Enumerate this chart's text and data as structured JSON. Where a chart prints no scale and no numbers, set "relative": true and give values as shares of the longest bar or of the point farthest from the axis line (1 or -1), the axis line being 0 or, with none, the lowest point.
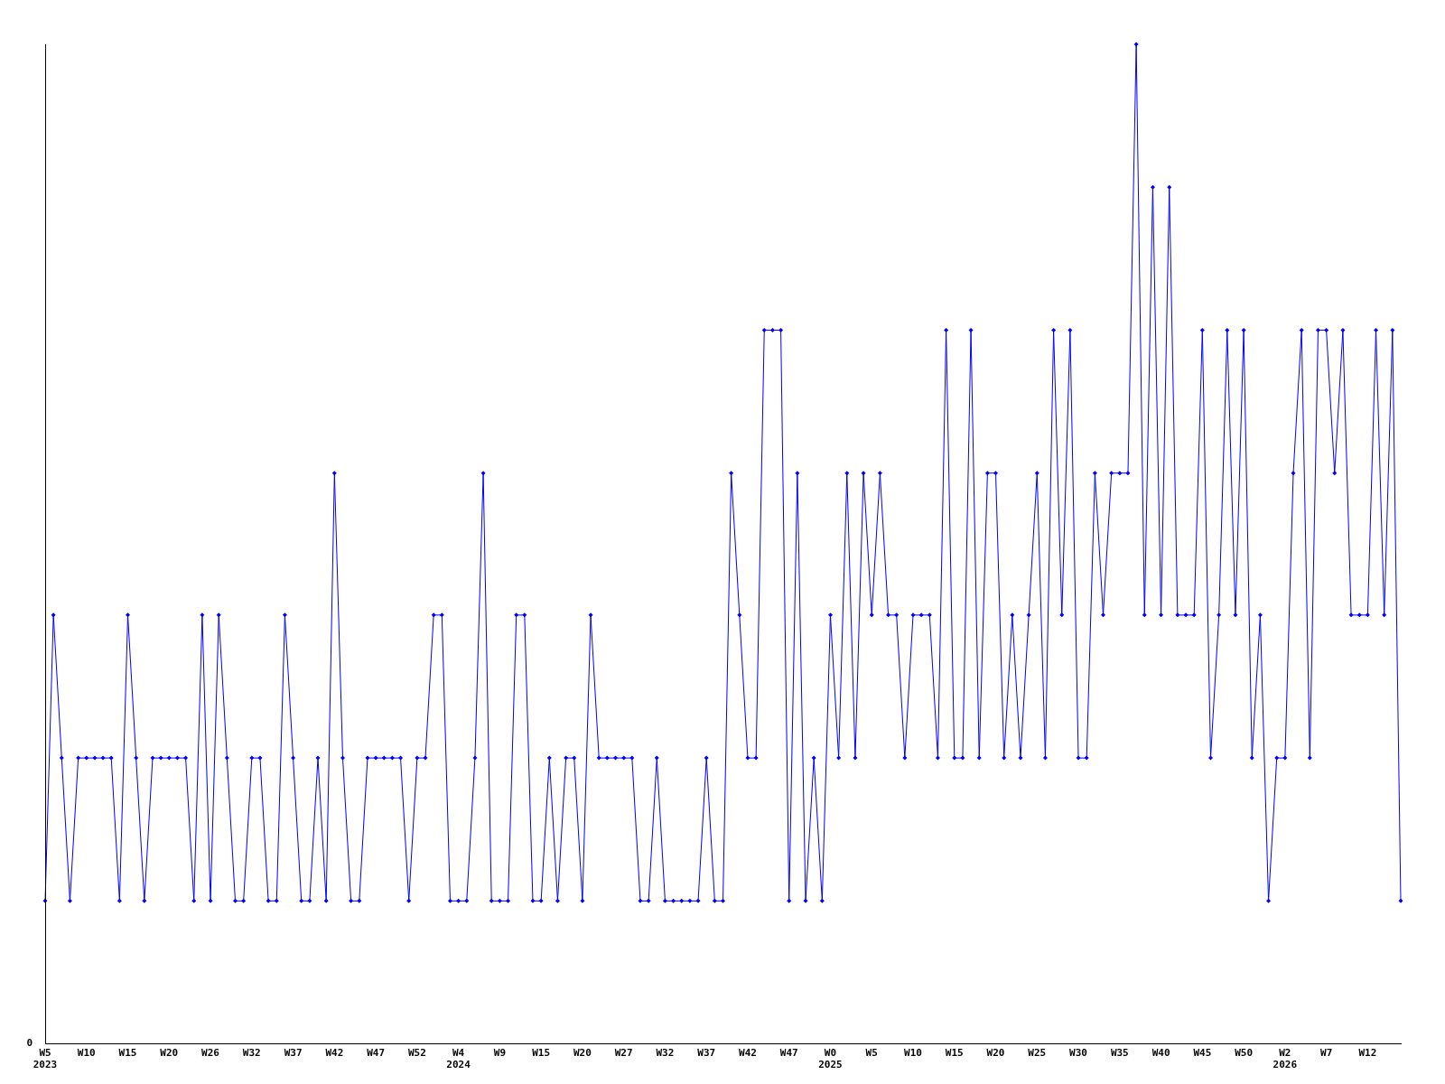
{
  "chart_data": {
    "type": "line",
    "relative": true,
    "marker": "diamond",
    "grid": false,
    "legend": false,
    "annotations": [
      "0"
    ],
    "categories": [
      "W5\n2023",
      null,
      null,
      null,
      null,
      "W10",
      null,
      null,
      null,
      null,
      "W15",
      null,
      null,
      null,
      null,
      "W20",
      null,
      null,
      null,
      null,
      "W26",
      null,
      null,
      null,
      null,
      "W32",
      null,
      null,
      null,
      null,
      "W37",
      null,
      null,
      null,
      null,
      "W42",
      null,
      null,
      null,
      null,
      "W47",
      null,
      null,
      null,
      null,
      "W52",
      null,
      null,
      null,
      null,
      "W4\n2024",
      null,
      null,
      null,
      null,
      "W9",
      null,
      null,
      null,
      null,
      "W15",
      null,
      null,
      null,
      null,
      "W20",
      null,
      null,
      null,
      null,
      "W27",
      null,
      null,
      null,
      null,
      "W32",
      null,
      null,
      null,
      null,
      "W37",
      null,
      null,
      null,
      null,
      "W42",
      null,
      null,
      null,
      null,
      "W47",
      null,
      null,
      null,
      null,
      "W0\n2025",
      null,
      null,
      null,
      null,
      "W5",
      null,
      null,
      null,
      null,
      "W10",
      null,
      null,
      null,
      null,
      "W15",
      null,
      null,
      null,
      null,
      "W20",
      null,
      null,
      null,
      null,
      "W25",
      null,
      null,
      null,
      null,
      "W30",
      null,
      null,
      null,
      null,
      "W35",
      null,
      null,
      null,
      null,
      "W40",
      null,
      null,
      null,
      null,
      "W45",
      null,
      null,
      null,
      null,
      "W50",
      null,
      null,
      null,
      null,
      "W2\n2026",
      null,
      null,
      null,
      null,
      "W7",
      null,
      null,
      null,
      null,
      "W12",
      null,
      null,
      null,
      null
    ],
    "series": [
      {
        "color": "#0000ff",
        "values": [
          0.143,
          0.429,
          0.286,
          0.143,
          0.286,
          0.286,
          0.286,
          0.286,
          0.286,
          0.143,
          0.429,
          0.286,
          0.143,
          0.286,
          0.286,
          0.286,
          0.286,
          0.286,
          0.143,
          0.429,
          0.143,
          0.429,
          0.286,
          0.143,
          0.143,
          0.286,
          0.286,
          0.143,
          0.143,
          0.429,
          0.286,
          0.143,
          0.143,
          0.286,
          0.143,
          0.571,
          0.286,
          0.143,
          0.143,
          0.286,
          0.286,
          0.286,
          0.286,
          0.286,
          0.143,
          0.286,
          0.286,
          0.429,
          0.429,
          0.143,
          0.143,
          0.143,
          0.286,
          0.571,
          0.143,
          0.143,
          0.143,
          0.429,
          0.429,
          0.143,
          0.143,
          0.286,
          0.143,
          0.286,
          0.286,
          0.143,
          0.429,
          0.286,
          0.286,
          0.286,
          0.286,
          0.286,
          0.143,
          0.143,
          0.286,
          0.143,
          0.143,
          0.143,
          0.143,
          0.143,
          0.286,
          0.143,
          0.143,
          0.571,
          0.429,
          0.286,
          0.286,
          0.714,
          0.714,
          0.714,
          0.143,
          0.571,
          0.143,
          0.286,
          0.143,
          0.429,
          0.286,
          0.571,
          0.286,
          0.571,
          0.429,
          0.571,
          0.429,
          0.429,
          0.286,
          0.429,
          0.429,
          0.429,
          0.286,
          0.714,
          0.286,
          0.286,
          0.714,
          0.286,
          0.571,
          0.571,
          0.286,
          0.429,
          0.286,
          0.429,
          0.571,
          0.286,
          0.714,
          0.429,
          0.714,
          0.286,
          0.286,
          0.571,
          0.429,
          0.571,
          0.571,
          0.571,
          1,
          0.429,
          0.857,
          0.429,
          0.857,
          0.429,
          0.429,
          0.429,
          0.714,
          0.286,
          0.429,
          0.714,
          0.429,
          0.714,
          0.286,
          0.429,
          0.143,
          0.286,
          0.286,
          0.571,
          0.714,
          0.286,
          0.714,
          0.714,
          0.571,
          0.714,
          0.429,
          0.429,
          0.429,
          0.714,
          0.429,
          0.714,
          0.143
        ]
      }
    ]
  }
}
